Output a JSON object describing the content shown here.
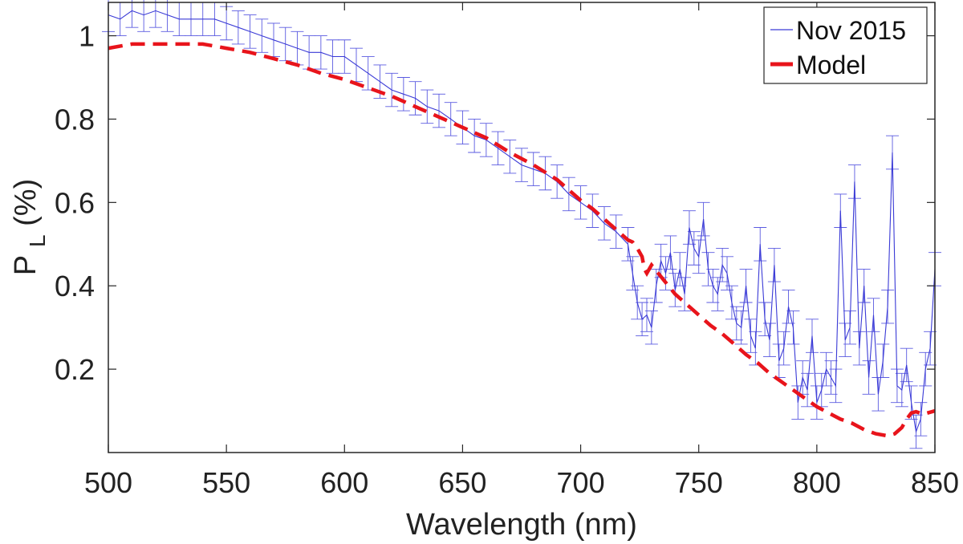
{
  "chart_data": {
    "type": "line",
    "xlabel": "Wavelength (nm)",
    "ylabel": {
      "main": "P",
      "sub": "L",
      "unit": " (%)"
    },
    "xlim": [
      500,
      850
    ],
    "ylim": [
      0.0,
      1.08
    ],
    "xticks": [
      500,
      550,
      600,
      650,
      700,
      750,
      800,
      850
    ],
    "yticks": [
      0.2,
      0.4,
      0.6,
      0.8,
      1
    ],
    "ytick_labels": [
      "0.2",
      "0.4",
      "0.6",
      "0.8",
      "1"
    ],
    "grid": false,
    "legend_position": "top-right",
    "series": [
      {
        "name": "Nov 2015",
        "style": "line-errorbar",
        "color": "#3a3ad6",
        "x": [
          500,
          505,
          510,
          515,
          520,
          525,
          530,
          535,
          540,
          545,
          550,
          555,
          560,
          565,
          570,
          575,
          580,
          585,
          590,
          595,
          600,
          605,
          610,
          615,
          620,
          625,
          630,
          635,
          640,
          645,
          650,
          655,
          660,
          665,
          670,
          675,
          680,
          685,
          690,
          695,
          700,
          705,
          710,
          715,
          720,
          722,
          724,
          726,
          728,
          730,
          732,
          734,
          736,
          738,
          740,
          742,
          744,
          746,
          748,
          750,
          752,
          754,
          756,
          758,
          760,
          762,
          764,
          766,
          768,
          770,
          772,
          774,
          776,
          778,
          780,
          782,
          784,
          786,
          788,
          790,
          792,
          794,
          796,
          798,
          800,
          802,
          804,
          806,
          808,
          810,
          812,
          814,
          816,
          818,
          820,
          822,
          824,
          826,
          828,
          830,
          832,
          834,
          836,
          838,
          840,
          842,
          844,
          846,
          848,
          850
        ],
        "y": [
          1.05,
          1.04,
          1.06,
          1.05,
          1.06,
          1.05,
          1.04,
          1.04,
          1.04,
          1.04,
          1.03,
          1.02,
          1.01,
          1.0,
          0.99,
          0.98,
          0.97,
          0.96,
          0.96,
          0.95,
          0.95,
          0.93,
          0.91,
          0.89,
          0.87,
          0.86,
          0.85,
          0.83,
          0.82,
          0.8,
          0.78,
          0.76,
          0.75,
          0.73,
          0.71,
          0.69,
          0.68,
          0.67,
          0.65,
          0.62,
          0.6,
          0.58,
          0.55,
          0.53,
          0.5,
          0.43,
          0.36,
          0.32,
          0.33,
          0.3,
          0.4,
          0.46,
          0.43,
          0.48,
          0.39,
          0.44,
          0.38,
          0.54,
          0.49,
          0.47,
          0.56,
          0.44,
          0.4,
          0.38,
          0.45,
          0.43,
          0.36,
          0.31,
          0.3,
          0.4,
          0.28,
          0.25,
          0.5,
          0.32,
          0.27,
          0.45,
          0.22,
          0.25,
          0.35,
          0.3,
          0.12,
          0.18,
          0.15,
          0.28,
          0.12,
          0.15,
          0.2,
          0.18,
          0.16,
          0.58,
          0.27,
          0.3,
          0.65,
          0.25,
          0.4,
          0.18,
          0.33,
          0.14,
          0.22,
          0.35,
          0.72,
          0.16,
          0.15,
          0.21,
          0.12,
          0.05,
          0.08,
          0.2,
          0.25,
          0.44
        ],
        "err": 0.04
      },
      {
        "name": "Model",
        "style": "dashed",
        "color": "#e8141b",
        "x": [
          500,
          510,
          520,
          530,
          540,
          550,
          560,
          570,
          580,
          590,
          600,
          610,
          620,
          630,
          640,
          650,
          660,
          670,
          680,
          690,
          700,
          705,
          710,
          715,
          720,
          722,
          724,
          726,
          727,
          728,
          730,
          735,
          740,
          745,
          750,
          755,
          760,
          765,
          770,
          775,
          780,
          785,
          790,
          795,
          800,
          805,
          810,
          815,
          820,
          825,
          830,
          833,
          836,
          838,
          840,
          842,
          845,
          850
        ],
        "y": [
          0.97,
          0.98,
          0.98,
          0.98,
          0.98,
          0.97,
          0.96,
          0.945,
          0.93,
          0.91,
          0.895,
          0.875,
          0.855,
          0.83,
          0.805,
          0.78,
          0.755,
          0.72,
          0.69,
          0.655,
          0.605,
          0.585,
          0.56,
          0.535,
          0.51,
          0.505,
          0.49,
          0.47,
          0.44,
          0.43,
          0.45,
          0.415,
          0.38,
          0.355,
          0.33,
          0.305,
          0.285,
          0.26,
          0.235,
          0.215,
          0.19,
          0.17,
          0.15,
          0.13,
          0.11,
          0.095,
          0.08,
          0.07,
          0.055,
          0.045,
          0.04,
          0.045,
          0.06,
          0.08,
          0.095,
          0.098,
          0.092,
          0.1
        ]
      }
    ]
  },
  "legend": {
    "items": [
      {
        "label": "Nov 2015",
        "color": "#3a3ad6"
      },
      {
        "label": "Model",
        "color": "#e8141b"
      }
    ]
  },
  "colors": {
    "axis": "#222222",
    "frame": "#262626",
    "errorbar": "#5a5ae0"
  }
}
